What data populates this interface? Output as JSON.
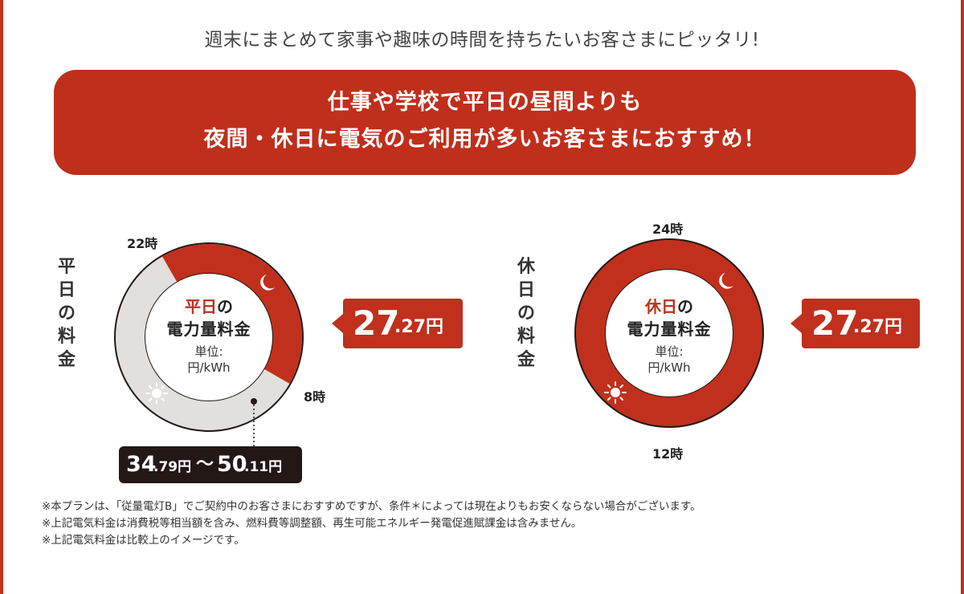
{
  "header": {
    "tagline": "週末にまとめて家事や趣味の時間を持ちたいお客さまにピッタリ!",
    "banner_line1": "仕事や学校で平日の昼間よりも",
    "banner_line2": "夜間・休日に電気のご利用が多いお客さまにおすすめ！"
  },
  "weekday": {
    "label": "平日の料金",
    "label_chars": [
      "平",
      "日",
      "の",
      "料",
      "金"
    ],
    "time_top": "22時",
    "time_right": "8時",
    "center_accent": "平日",
    "center_no": "の",
    "center_line2": "電力量料金",
    "unit_line1": "単位:",
    "unit_line2": "円/kWh",
    "night_price_int": "27",
    "night_price_dec": ".27円",
    "day_price_low_int": "34",
    "day_price_low_dec": ".79円",
    "day_price_sep": "〜",
    "day_price_high_int": "50",
    "day_price_high_dec": ".11円",
    "night_share": 0.4167
  },
  "holiday": {
    "label": "休日の料金",
    "label_chars": [
      "休",
      "日",
      "の",
      "料",
      "金"
    ],
    "time_top": "24時",
    "time_bottom": "12時",
    "center_accent": "休日",
    "center_no": "の",
    "center_line2": "電力量料金",
    "unit_line1": "単位:",
    "unit_line2": "円/kWh",
    "price_int": "27",
    "price_dec": ".27円"
  },
  "notes": [
    "※本プランは、「従量電灯B」でご契約中のお客さまにおすすめですが、条件＊によっては現在よりもお安くならない場合がございます。",
    "※上記電気料金は消費税等相当額を含み、燃料費等調整額、再生可能エネルギー発電促進賦課金は含みません。",
    "※上記電気料金は比較上のイメージです。"
  ],
  "colors": {
    "accent": "#c0301d",
    "day_ring": "#e2dfdc",
    "dark_box": "#231815"
  },
  "icons": [
    "moon-icon",
    "sun-icon"
  ]
}
